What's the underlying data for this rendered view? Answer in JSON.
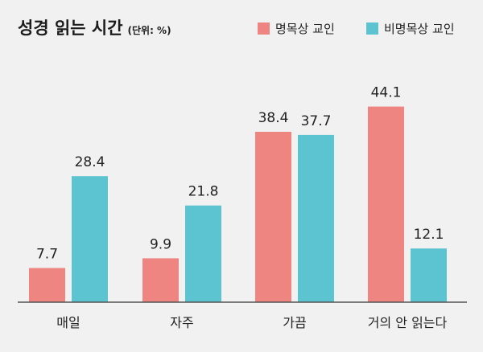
{
  "chart_data": {
    "type": "bar",
    "title": "성경 읽는 시간",
    "subtitle": "(단위: %)",
    "categories": [
      "매일",
      "자주",
      "가끔",
      "거의 안 읽는다"
    ],
    "series": [
      {
        "name": "명목상 교인",
        "color": "#ef8580",
        "values": [
          7.7,
          9.9,
          38.4,
          44.1
        ],
        "labels": [
          "7.7",
          "9.9",
          "38.4",
          "44.1"
        ]
      },
      {
        "name": "비명목상 교인",
        "color": "#5cc4d1",
        "values": [
          28.4,
          21.8,
          37.7,
          12.1
        ],
        "labels": [
          "28.4",
          "21.8",
          "37.7",
          "12.1"
        ]
      }
    ],
    "ylim": [
      0,
      50
    ],
    "grid": false,
    "legend_position": "top-right",
    "axis_color": "#555555"
  }
}
